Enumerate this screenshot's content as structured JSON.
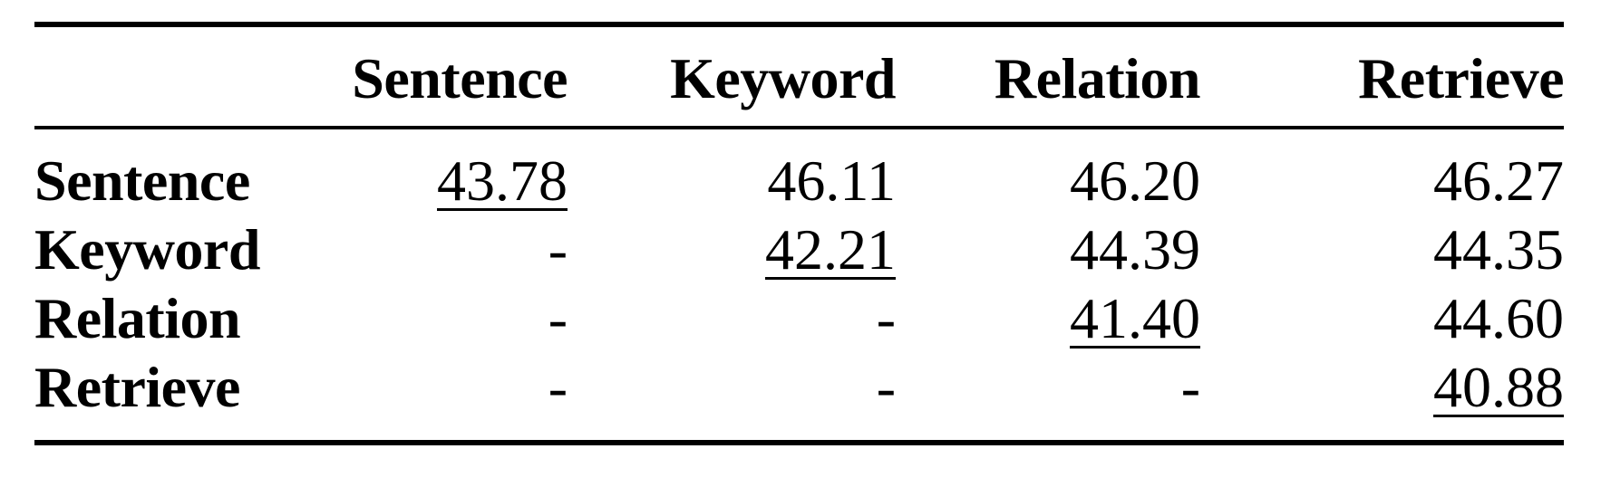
{
  "table": {
    "corner": "",
    "columns": [
      "Sentence",
      "Keyword",
      "Relation",
      "Retrieve"
    ],
    "rows": [
      {
        "label": "Sentence",
        "values": [
          "43.78",
          "46.11",
          "46.20",
          "46.27"
        ],
        "underlined_index": 0
      },
      {
        "label": "Keyword",
        "values": [
          "-",
          "42.21",
          "44.39",
          "44.35"
        ],
        "underlined_index": 1
      },
      {
        "label": "Relation",
        "values": [
          "-",
          "-",
          "41.40",
          "44.60"
        ],
        "underlined_index": 2
      },
      {
        "label": "Retrieve",
        "values": [
          "-",
          "-",
          "-",
          "40.88"
        ],
        "underlined_index": 3
      }
    ]
  }
}
